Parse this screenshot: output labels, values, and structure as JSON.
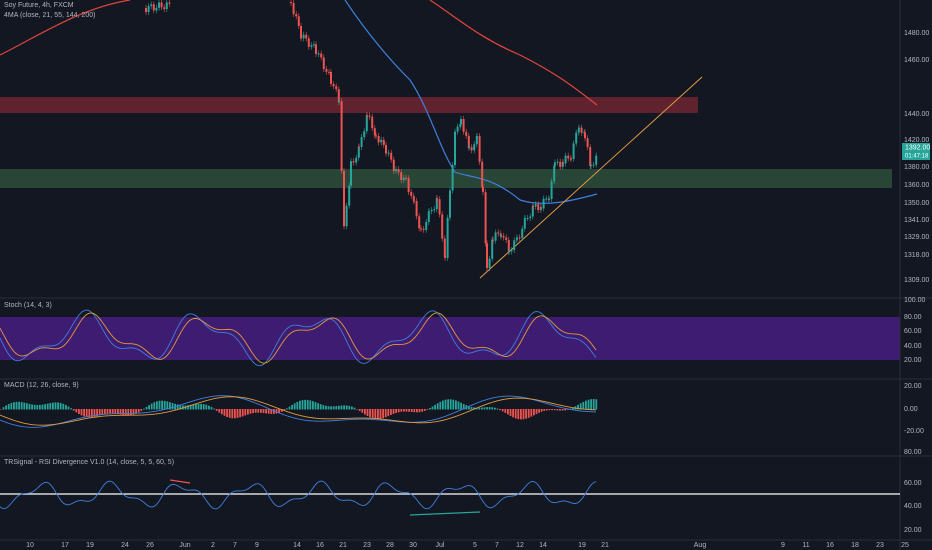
{
  "header": {
    "symbol": "Soy Future, 4h, FXCM",
    "indicator": "4MA (close, 21, 55, 144, 200)"
  },
  "price_axis": {
    "labels": [
      "1480.00",
      "1460.00",
      "1440.00",
      "1420.00",
      "1380.00",
      "1360.00",
      "1350.00",
      "1341.00",
      "1329.00",
      "1318.00",
      "1309.00"
    ],
    "last_price": "1392.00",
    "countdown": "01:47:18"
  },
  "panes": [
    {
      "title": "Stoch (14, 4, 3)",
      "labels": [
        "100.00",
        "80.00",
        "60.00",
        "40.00",
        "20.00"
      ]
    },
    {
      "title": "MACD (12, 26, close, 9)",
      "labels": [
        "20.00",
        "0.00",
        "-20.00"
      ]
    },
    {
      "title": "TRSignal - RSI Divergence V1.0 (14, close, 5, 5, 60, 5)",
      "labels": [
        "80.00",
        "60.00",
        "40.00",
        "20.00"
      ]
    }
  ],
  "time_axis": [
    "10",
    "17",
    "19",
    "24",
    "26",
    "Jun",
    "2",
    "7",
    "9",
    "14",
    "16",
    "21",
    "23",
    "28",
    "30",
    "Jul",
    "5",
    "7",
    "12",
    "14",
    "19",
    "21",
    "Aug",
    "9",
    "11",
    "16",
    "18",
    "23",
    "25"
  ]
}
